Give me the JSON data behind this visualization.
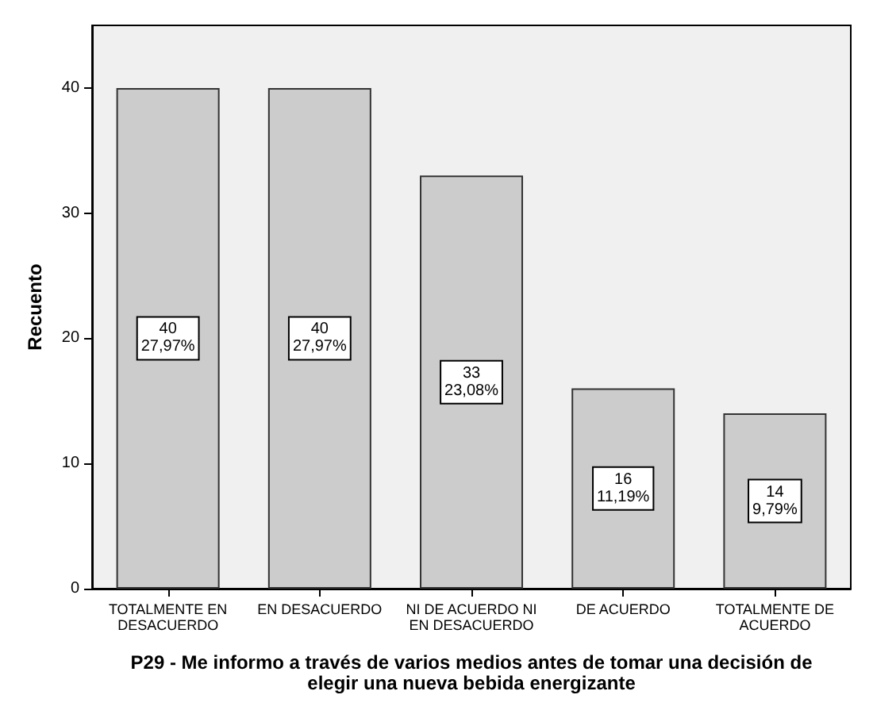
{
  "chart_data": {
    "type": "bar",
    "xlabel": "P29 - Me informo a través de varios medios antes de tomar una decisión de\nelegir una nueva bebida energizante",
    "ylabel": "Recuento",
    "categories": [
      "TOTALMENTE EN\nDESACUERDO",
      "EN DESACUERDO",
      "NI DE ACUERDO NI\nEN DESACUERDO",
      "DE ACUERDO",
      "TOTALMENTE DE\nACUERDO"
    ],
    "values": [
      40,
      40,
      33,
      16,
      14
    ],
    "value_labels": [
      "40\n27,97%",
      "40\n27,97%",
      "33\n23,08%",
      "16\n11,19%",
      "14\n9,79%"
    ],
    "color": "#cccccc",
    "ylim": [
      0,
      45
    ],
    "yticks": [
      0,
      10,
      20,
      30,
      40
    ],
    "grid": false
  }
}
